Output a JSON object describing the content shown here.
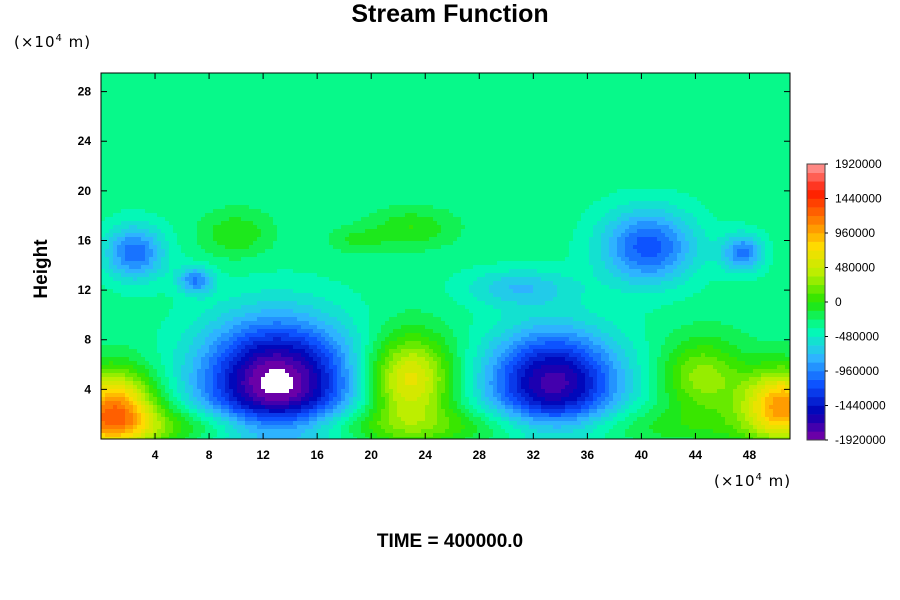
{
  "chart_data": {
    "type": "heatmap",
    "title": "Stream Function",
    "xlabel": "",
    "ylabel": "Height",
    "x_unit": {
      "prefix": "(×10",
      "exp": "4",
      "suffix": " m)"
    },
    "y_unit": {
      "prefix": "(×10",
      "exp": "4",
      "suffix": " m)"
    },
    "xlim": [
      0,
      51
    ],
    "ylim": [
      0,
      29.5
    ],
    "x_ticks": [
      4,
      8,
      12,
      16,
      20,
      24,
      28,
      32,
      36,
      40,
      44,
      48
    ],
    "y_ticks": [
      4,
      8,
      12,
      16,
      20,
      24,
      28
    ],
    "colorbar": {
      "min": -1920000,
      "max": 1920000,
      "step": 120000,
      "labels": [
        "1920000",
        "1440000",
        "960000",
        "480000",
        "0",
        "-480000",
        "-960000",
        "-1440000",
        "-1920000"
      ],
      "label_values": [
        1920000,
        1440000,
        960000,
        480000,
        0,
        -480000,
        -960000,
        -1440000,
        -1920000
      ],
      "colormap": [
        "#7e00a6",
        "#0000b4",
        "#0c50ff",
        "#2fb6ff",
        "#00ffb0",
        "#22e400",
        "#b6f000",
        "#ffdd00",
        "#ff7a00",
        "#ff1a00",
        "#ff9c9c"
      ]
    },
    "background_value": -300000,
    "features": [
      {
        "x": 13.0,
        "y": 4.5,
        "rx": 5.5,
        "ry": 5.0,
        "value": -2000000
      },
      {
        "x": 33.5,
        "y": 4.5,
        "rx": 4.8,
        "ry": 4.2,
        "value": -1750000
      },
      {
        "x": 2.5,
        "y": 15.0,
        "rx": 2.2,
        "ry": 2.2,
        "value": -1050000
      },
      {
        "x": 7.0,
        "y": 12.8,
        "rx": 1.3,
        "ry": 1.1,
        "value": -950000
      },
      {
        "x": 40.5,
        "y": 15.5,
        "rx": 3.5,
        "ry": 3.0,
        "value": -1150000
      },
      {
        "x": 47.5,
        "y": 15.0,
        "rx": 1.5,
        "ry": 1.5,
        "value": -1000000
      },
      {
        "x": 31.0,
        "y": 12.2,
        "rx": 4.0,
        "ry": 1.5,
        "value": -700000
      },
      {
        "x": 1.0,
        "y": 2.5,
        "rx": 3.0,
        "ry": 3.0,
        "value": 1050000
      },
      {
        "x": 22.8,
        "y": 4.8,
        "rx": 3.2,
        "ry": 3.5,
        "value": 700000
      },
      {
        "x": 44.5,
        "y": 5.0,
        "rx": 3.0,
        "ry": 3.0,
        "value": 300000
      },
      {
        "x": 50.5,
        "y": 2.8,
        "rx": 3.0,
        "ry": 2.8,
        "value": 1000000
      },
      {
        "x": 10.0,
        "y": 16.5,
        "rx": 2.5,
        "ry": 1.8,
        "value": 0
      },
      {
        "x": 23.0,
        "y": 17.0,
        "rx": 3.0,
        "ry": 1.5,
        "value": 0
      },
      {
        "x": 19.0,
        "y": 16.0,
        "rx": 2.0,
        "ry": 1.0,
        "value": -100000
      },
      {
        "x": 0,
        "y": 1.0,
        "rx": 51,
        "ry": 1.6,
        "value": 150000
      }
    ]
  },
  "footer": {
    "text": "TIME = 400000.0"
  }
}
